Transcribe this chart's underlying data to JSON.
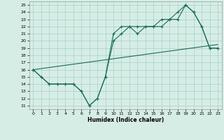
{
  "xlabel": "Humidex (Indice chaleur)",
  "bg_color": "#d6ede6",
  "grid_color": "#a8cfc4",
  "line_color": "#1a6b5a",
  "xlim": [
    -0.5,
    23.5
  ],
  "ylim": [
    10.5,
    25.5
  ],
  "xticks": [
    0,
    1,
    2,
    3,
    4,
    5,
    6,
    7,
    8,
    9,
    10,
    11,
    12,
    13,
    14,
    15,
    16,
    17,
    18,
    19,
    20,
    21,
    22,
    23
  ],
  "yticks": [
    11,
    12,
    13,
    14,
    15,
    16,
    17,
    18,
    19,
    20,
    21,
    22,
    23,
    24,
    25
  ],
  "line1_x": [
    0,
    1,
    2,
    3,
    4,
    5,
    6,
    7,
    8,
    9,
    10,
    11,
    12,
    13,
    14,
    15,
    16,
    17,
    18,
    19,
    20,
    21,
    22,
    23
  ],
  "line1_y": [
    16,
    15,
    14,
    14,
    14,
    14,
    13,
    11,
    12,
    15,
    21,
    22,
    22,
    22,
    22,
    22,
    23,
    23,
    24,
    25,
    24,
    22,
    19,
    19
  ],
  "line2_x": [
    0,
    1,
    2,
    3,
    4,
    5,
    6,
    7,
    8,
    9,
    10,
    11,
    12,
    13,
    14,
    15,
    16,
    17,
    18,
    19,
    20,
    21,
    22,
    23
  ],
  "line2_y": [
    16,
    15,
    14,
    14,
    14,
    14,
    13,
    11,
    12,
    15,
    20,
    21,
    22,
    21,
    22,
    22,
    22,
    23,
    23,
    25,
    24,
    22,
    19,
    19
  ],
  "line3_x": [
    0,
    23
  ],
  "line3_y": [
    16,
    19.5
  ]
}
